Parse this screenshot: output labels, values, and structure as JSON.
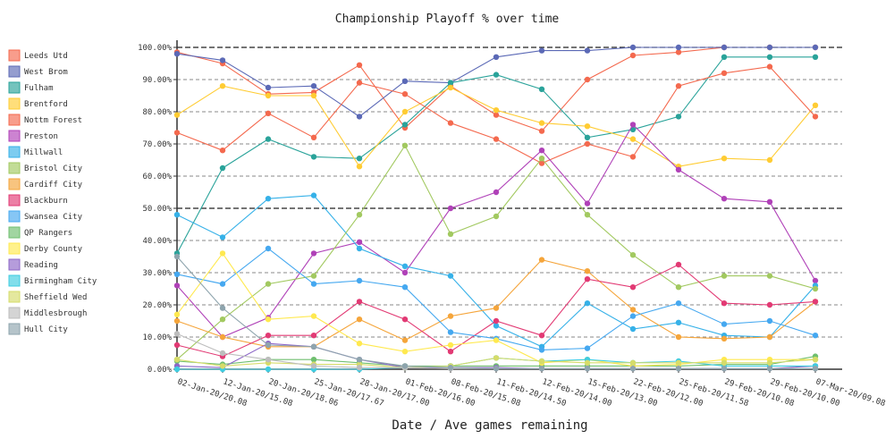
{
  "chart_data": {
    "type": "line",
    "title": "Championship Playoff % over time",
    "xlabel": "Date / Ave games remaining",
    "ylabel": "",
    "ylim": [
      0,
      100
    ],
    "yticks": [
      "0.00%",
      "10.00%",
      "20.00%",
      "30.00%",
      "40.00%",
      "50.00%",
      "60.00%",
      "70.00%",
      "80.00%",
      "90.00%",
      "100.00%"
    ],
    "x": [
      "02-Jan-20/20.08",
      "12-Jan-20/15.08",
      "20-Jan-20/18.06",
      "25-Jan-20/17.67",
      "28-Jan-20/17.00",
      "01-Feb-20/16.00",
      "08-Feb-20/15.08",
      "11-Feb-20/14.50",
      "12-Feb-20/14.00",
      "15-Feb-20/13.00",
      "22-Feb-20/12.00",
      "25-Feb-20/11.58",
      "29-Feb-20/10.08",
      "29-Feb-20/10.00",
      "07-Mar-20/09.08"
    ],
    "legend_position": "left",
    "series": [
      {
        "name": "Leeds Utd",
        "color": "#f4694e",
        "values": [
          98.5,
          95,
          85.5,
          86,
          94.5,
          75,
          88,
          79,
          74,
          90,
          97.5,
          98.5,
          100,
          100,
          100
        ]
      },
      {
        "name": "West Brom",
        "color": "#5b69b6",
        "values": [
          98,
          96,
          87.5,
          88,
          78.5,
          89.5,
          89,
          97,
          99,
          99,
          100,
          100,
          100,
          100,
          100
        ]
      },
      {
        "name": "Fulham",
        "color": "#2aa39a",
        "values": [
          36,
          62.5,
          71.5,
          66,
          65.5,
          76,
          89,
          91.5,
          87,
          72,
          74.5,
          78.5,
          97,
          97,
          97
        ]
      },
      {
        "name": "Brentford",
        "color": "#ffcc33",
        "values": [
          79,
          88,
          85,
          85,
          63,
          80,
          87.5,
          80.5,
          76.5,
          75.5,
          71.5,
          63,
          65.5,
          65,
          82
        ]
      },
      {
        "name": "Nottm Forest",
        "color": "#f4694e",
        "values": [
          73.5,
          68,
          79.5,
          72,
          89,
          85.5,
          76.5,
          71.5,
          64,
          70,
          66,
          88,
          92,
          94,
          78.5
        ]
      },
      {
        "name": "Preston",
        "color": "#b041b8",
        "values": [
          26,
          10,
          16,
          36,
          39.5,
          30,
          50,
          55,
          68,
          51.5,
          76,
          62,
          53,
          52,
          27.5
        ]
      },
      {
        "name": "Millwall",
        "color": "#36b1e8",
        "values": [
          48,
          41,
          53,
          54,
          37.5,
          32,
          29,
          13.5,
          7,
          20.5,
          12.5,
          14.5,
          10.5,
          10,
          26
        ]
      },
      {
        "name": "Bristol City",
        "color": "#a2c960",
        "values": [
          3,
          15.5,
          26.5,
          29,
          48,
          69.5,
          42,
          47.5,
          65.5,
          48,
          35.5,
          25.5,
          29,
          29,
          25
        ]
      },
      {
        "name": "Cardiff City",
        "color": "#f5a53b",
        "values": [
          15,
          10,
          7,
          7,
          15.5,
          9,
          16.5,
          19,
          34,
          30.5,
          18.5,
          10,
          9.5,
          10,
          21
        ]
      },
      {
        "name": "Blackburn",
        "color": "#e23a74",
        "values": [
          7.5,
          4,
          10.5,
          10.5,
          21,
          15.5,
          5.5,
          15,
          10.5,
          28,
          25.5,
          32.5,
          20.5,
          20,
          21
        ]
      },
      {
        "name": "Swansea City",
        "color": "#45a8f0",
        "values": [
          29.5,
          26.5,
          37.5,
          26.5,
          27.5,
          25.5,
          11.5,
          9.5,
          6,
          6.5,
          16.5,
          20.5,
          14,
          15,
          10.5
        ]
      },
      {
        "name": "QP Rangers",
        "color": "#6fbf6f",
        "values": [
          2.5,
          1.5,
          3,
          3,
          2,
          1,
          1,
          1,
          1,
          1,
          1,
          1,
          1.5,
          1.5,
          4
        ]
      },
      {
        "name": "Derby County",
        "color": "#ffe94f",
        "values": [
          17,
          36,
          15.5,
          16.5,
          8,
          5.5,
          7.5,
          9,
          2,
          3,
          1,
          1.5,
          3,
          3,
          3
        ]
      },
      {
        "name": "Reading",
        "color": "#8d67c7",
        "values": [
          1,
          0.5,
          8,
          7,
          3,
          0.5,
          0.5,
          0.5,
          0.2,
          0.2,
          0.2,
          0.2,
          0.2,
          0.2,
          1
        ]
      },
      {
        "name": "Birmingham City",
        "color": "#3fcce0",
        "values": [
          0,
          0,
          0,
          0,
          0,
          0.5,
          1,
          3.5,
          2.5,
          3,
          2,
          2.5,
          1,
          1,
          1
        ]
      },
      {
        "name": "Sheffield Wed",
        "color": "#d6dc6a",
        "values": [
          3,
          1,
          2,
          1.5,
          1.5,
          0.5,
          1,
          3.5,
          2.5,
          2,
          2,
          2,
          2,
          2,
          3
        ]
      },
      {
        "name": "Middlesbrough",
        "color": "#bdbdbd",
        "values": [
          11,
          5,
          3,
          1,
          0.5,
          0.5,
          0.2,
          0.2,
          0.2,
          0.2,
          0.2,
          0.2,
          0.2,
          0.2,
          0.2
        ]
      },
      {
        "name": "Hull City",
        "color": "#8ea4ad",
        "values": [
          35,
          19,
          7.5,
          7,
          3,
          1,
          0.5,
          0.2,
          0.2,
          0.2,
          0.2,
          0.2,
          0.2,
          0.2,
          0.2
        ]
      }
    ]
  }
}
